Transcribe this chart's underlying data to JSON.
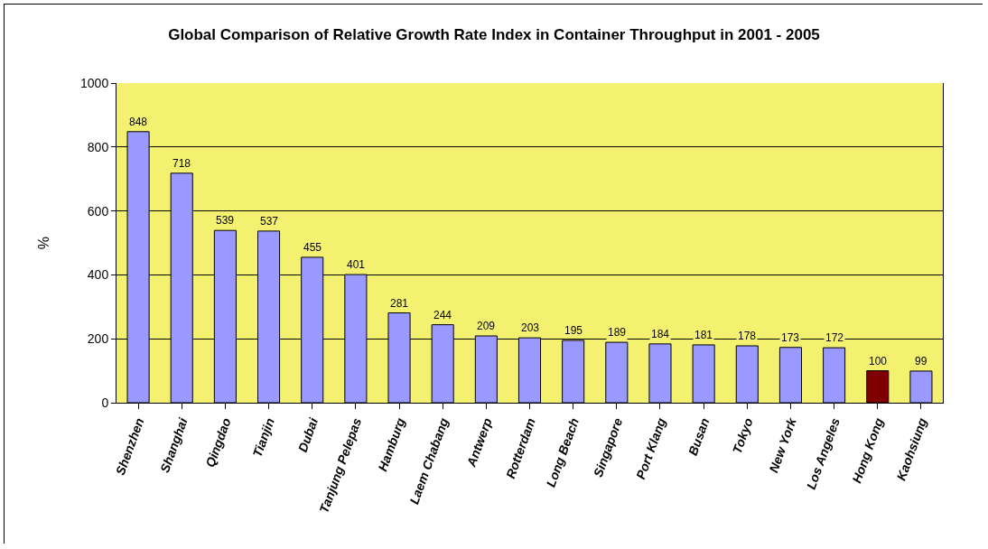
{
  "chart_data": {
    "type": "bar",
    "title": "Global Comparison of Relative Growth Rate Index in Container Throughput in 2001 - 2005",
    "ylabel": "%",
    "categories": [
      "Shenzhen",
      "Shanghai",
      "Qingdao",
      "Tianjin",
      "Dubai",
      "Tanjung Pelepas",
      "Hamburg",
      "Laem Chabang",
      "Antwerp",
      "Rotterdam",
      "Long Beach",
      "Singapore",
      "Port Klang",
      "Busan",
      "Tokyo",
      "New York",
      "Los Angeles",
      "Hong Kong",
      "Kaohsiung"
    ],
    "values": [
      848,
      718,
      539,
      537,
      455,
      401,
      281,
      244,
      209,
      203,
      195,
      189,
      184,
      181,
      178,
      173,
      172,
      100,
      99
    ],
    "colors": [
      "#9999ff",
      "#9999ff",
      "#9999ff",
      "#9999ff",
      "#9999ff",
      "#9999ff",
      "#9999ff",
      "#9999ff",
      "#9999ff",
      "#9999ff",
      "#9999ff",
      "#9999ff",
      "#9999ff",
      "#9999ff",
      "#9999ff",
      "#9999ff",
      "#9999ff",
      "#800000",
      "#9999ff"
    ],
    "ylim": [
      0,
      1000
    ],
    "yticks": [
      0,
      200,
      400,
      600,
      800,
      1000
    ],
    "grid": "y",
    "data_labels": true
  }
}
